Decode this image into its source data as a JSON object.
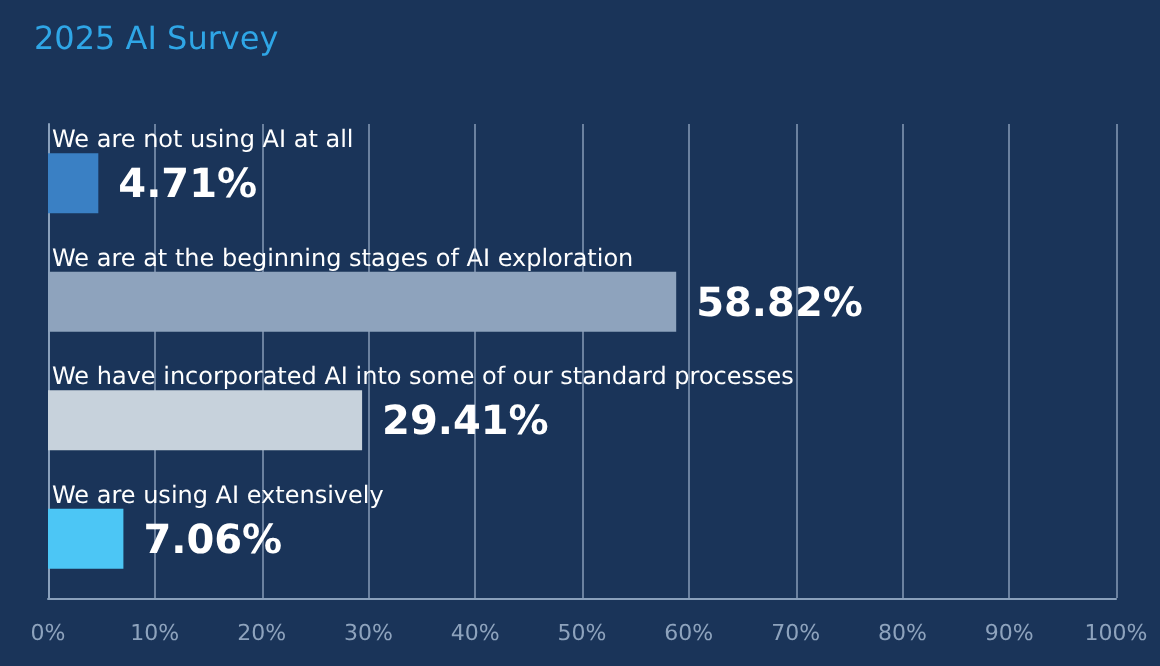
{
  "chart_data": {
    "type": "bar",
    "orientation": "horizontal",
    "title": "2025 AI Survey",
    "categories": [
      "We are not using AI at all",
      "We are at the beginning stages of AI exploration",
      "We have incorporated AI into some of our standard processes",
      "We are using AI extensively"
    ],
    "values": [
      4.71,
      58.82,
      29.41,
      7.06
    ],
    "colors": [
      "#3a80c4",
      "#8ea3bd",
      "#c7d2dc",
      "#4cc6f5"
    ],
    "value_labels": [
      "4.71%",
      "58.82%",
      "29.41%",
      "7.06%"
    ],
    "xlim": [
      0,
      100
    ],
    "xticks": [
      {
        "value": 0,
        "label": "0%"
      },
      {
        "value": 10,
        "label": "10%"
      },
      {
        "value": 20,
        "label": "20%"
      },
      {
        "value": 30,
        "label": "30%"
      },
      {
        "value": 40,
        "label": "40%"
      },
      {
        "value": 50,
        "label": "50%"
      },
      {
        "value": 60,
        "label": "60%"
      },
      {
        "value": 70,
        "label": "70%"
      },
      {
        "value": 80,
        "label": "80%"
      },
      {
        "value": 90,
        "label": "90%"
      },
      {
        "value": 100,
        "label": "100%"
      }
    ],
    "grid": "x"
  }
}
